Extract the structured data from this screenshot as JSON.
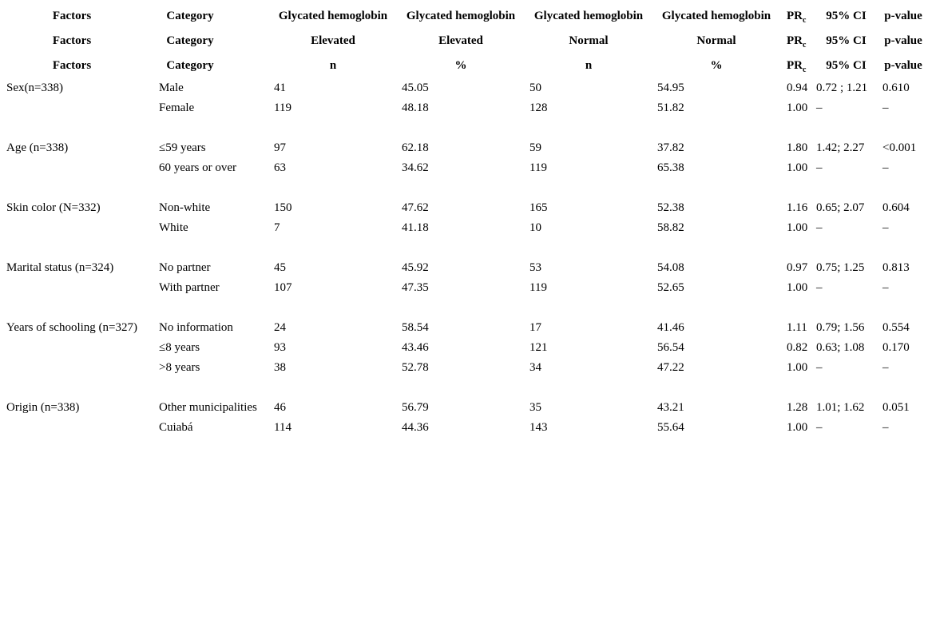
{
  "colors": {
    "background": "#ffffff",
    "text": "#000000"
  },
  "table": {
    "header_rows": [
      [
        "Factors",
        "Category",
        "Glycated hemoglobin",
        "Glycated hemoglobin",
        "Glycated hemoglobin",
        "Glycated hemoglobin",
        {
          "text": "PR",
          "sub": "c"
        },
        "95% CI",
        "p-value"
      ],
      [
        "Factors",
        "Category",
        "Elevated",
        "Elevated",
        "Normal",
        "Normal",
        {
          "text": "PR",
          "sub": "c"
        },
        "95% CI",
        "p-value"
      ],
      [
        "Factors",
        "Category",
        "n",
        "%",
        "n",
        "%",
        {
          "text": "PR",
          "sub": "c"
        },
        "95% CI",
        "p-value"
      ]
    ],
    "column_roles": [
      "factor",
      "category",
      "elevated-n",
      "elevated-pct",
      "normal-n",
      "normal-pct",
      "pr",
      "ci",
      "p-value"
    ],
    "groups": [
      {
        "factor": "Sex(n=338)",
        "rows": [
          [
            "Male",
            "41",
            "45.05",
            "50",
            "54.95",
            "0.94",
            "0.72 ; 1.21",
            "0.610"
          ],
          [
            "Female",
            "119",
            "48.18",
            "128",
            "51.82",
            "1.00",
            "–",
            "–"
          ]
        ]
      },
      {
        "factor": "Age (n=338)",
        "rows": [
          [
            "≤59 years",
            "97",
            "62.18",
            "59",
            "37.82",
            "1.80",
            "1.42; 2.27",
            "<0.001"
          ],
          [
            "60 years or over",
            "63",
            "34.62",
            "119",
            "65.38",
            "1.00",
            "–",
            "–"
          ]
        ]
      },
      {
        "factor": "Skin color (N=332)",
        "rows": [
          [
            "Non-white",
            "150",
            "47.62",
            "165",
            "52.38",
            "1.16",
            "0.65; 2.07",
            "0.604"
          ],
          [
            "White",
            "7",
            "41.18",
            "10",
            "58.82",
            "1.00",
            "–",
            "–"
          ]
        ]
      },
      {
        "factor": "Marital status (n=324)",
        "rows": [
          [
            "No partner",
            "45",
            "45.92",
            "53",
            "54.08",
            "0.97",
            "0.75; 1.25",
            "0.813"
          ],
          [
            "With partner",
            "107",
            "47.35",
            "119",
            "52.65",
            "1.00",
            "–",
            "–"
          ]
        ]
      },
      {
        "factor": "Years of schooling (n=327)",
        "rows": [
          [
            "No information",
            "24",
            "58.54",
            "17",
            "41.46",
            "1.11",
            "0.79; 1.56",
            "0.554"
          ],
          [
            "≤8 years",
            "93",
            "43.46",
            "121",
            "56.54",
            "0.82",
            "0.63; 1.08",
            "0.170"
          ],
          [
            ">8 years",
            "38",
            "52.78",
            "34",
            "47.22",
            "1.00",
            "–",
            "–"
          ]
        ]
      },
      {
        "factor": "Origin (n=338)",
        "rows": [
          [
            "Other municipalities",
            "46",
            "56.79",
            "35",
            "43.21",
            "1.28",
            "1.01; 1.62",
            "0.051"
          ],
          [
            "Cuiabá",
            "114",
            "44.36",
            "143",
            "55.64",
            "1.00",
            "–",
            "–"
          ]
        ]
      }
    ]
  }
}
